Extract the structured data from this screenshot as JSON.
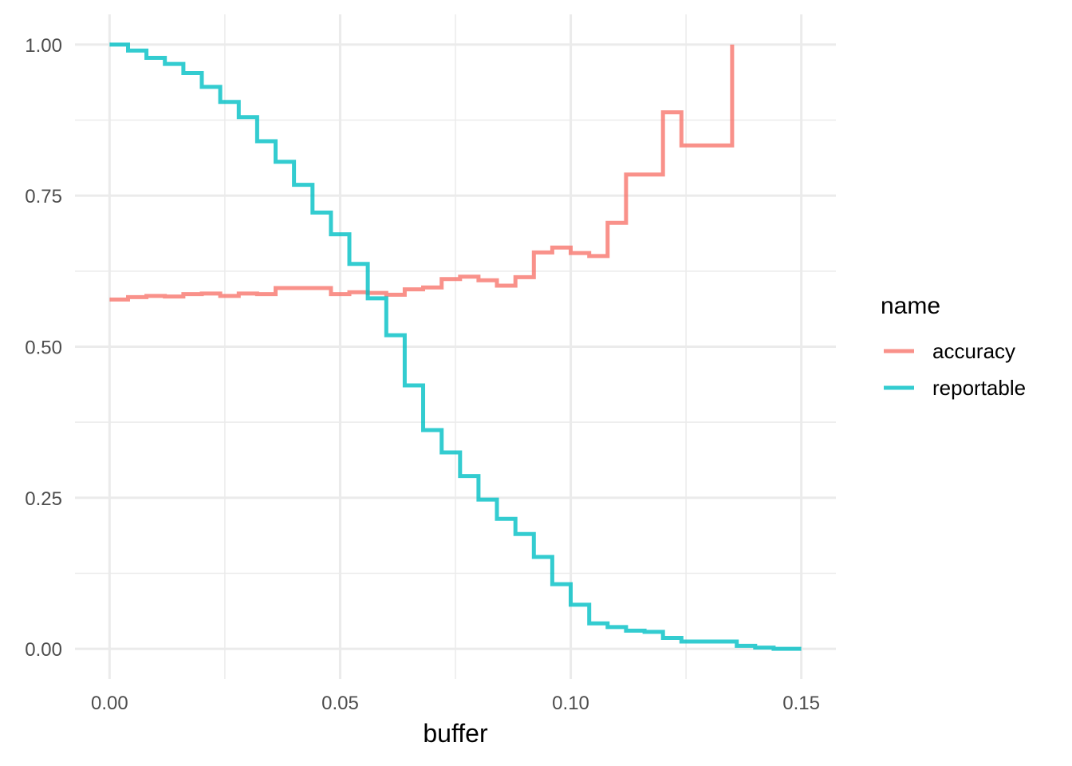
{
  "chart_data": {
    "type": "line",
    "step": true,
    "title": "",
    "xlabel": "buffer",
    "ylabel": "",
    "xlim": [
      -0.0075,
      0.1575
    ],
    "ylim": [
      -0.05,
      1.05
    ],
    "x_ticks": [
      0.0,
      0.05,
      0.1,
      0.15
    ],
    "x_tick_labels": [
      "0.00",
      "0.05",
      "0.10",
      "0.15"
    ],
    "y_ticks": [
      0.0,
      0.25,
      0.5,
      0.75,
      1.0
    ],
    "y_tick_labels": [
      "0.00",
      "0.25",
      "0.50",
      "0.75",
      "1.00"
    ],
    "grid": true,
    "legend": {
      "title": "name",
      "position": "right"
    },
    "series": [
      {
        "name": "accuracy",
        "color": "#F8766D",
        "x": [
          0.0,
          0.004,
          0.008,
          0.012,
          0.016,
          0.02,
          0.024,
          0.028,
          0.032,
          0.036,
          0.04,
          0.044,
          0.048,
          0.052,
          0.056,
          0.06,
          0.064,
          0.068,
          0.072,
          0.076,
          0.08,
          0.084,
          0.088,
          0.092,
          0.096,
          0.1,
          0.104,
          0.108,
          0.112,
          0.116,
          0.12,
          0.124,
          0.128,
          0.132,
          0.135
        ],
        "y": [
          0.578,
          0.582,
          0.584,
          0.583,
          0.587,
          0.588,
          0.584,
          0.588,
          0.587,
          0.597,
          0.597,
          0.597,
          0.587,
          0.59,
          0.589,
          0.586,
          0.595,
          0.598,
          0.612,
          0.616,
          0.61,
          0.601,
          0.615,
          0.656,
          0.664,
          0.655,
          0.65,
          0.705,
          0.785,
          0.785,
          0.888,
          0.833,
          0.833,
          0.833,
          1.0
        ]
      },
      {
        "name": "reportable",
        "color": "#00BFC4",
        "x": [
          0.0,
          0.004,
          0.008,
          0.012,
          0.016,
          0.02,
          0.024,
          0.028,
          0.032,
          0.036,
          0.04,
          0.044,
          0.048,
          0.052,
          0.056,
          0.06,
          0.064,
          0.068,
          0.072,
          0.076,
          0.08,
          0.084,
          0.088,
          0.092,
          0.096,
          0.1,
          0.104,
          0.108,
          0.112,
          0.116,
          0.12,
          0.124,
          0.128,
          0.132,
          0.136,
          0.14,
          0.144,
          0.148,
          0.15
        ],
        "y": [
          1.0,
          0.99,
          0.978,
          0.968,
          0.953,
          0.93,
          0.905,
          0.88,
          0.84,
          0.806,
          0.768,
          0.722,
          0.686,
          0.637,
          0.58,
          0.519,
          0.436,
          0.362,
          0.325,
          0.286,
          0.247,
          0.215,
          0.19,
          0.152,
          0.107,
          0.073,
          0.042,
          0.036,
          0.03,
          0.028,
          0.018,
          0.012,
          0.012,
          0.012,
          0.005,
          0.002,
          0.0,
          0.0,
          0.0
        ]
      }
    ]
  }
}
